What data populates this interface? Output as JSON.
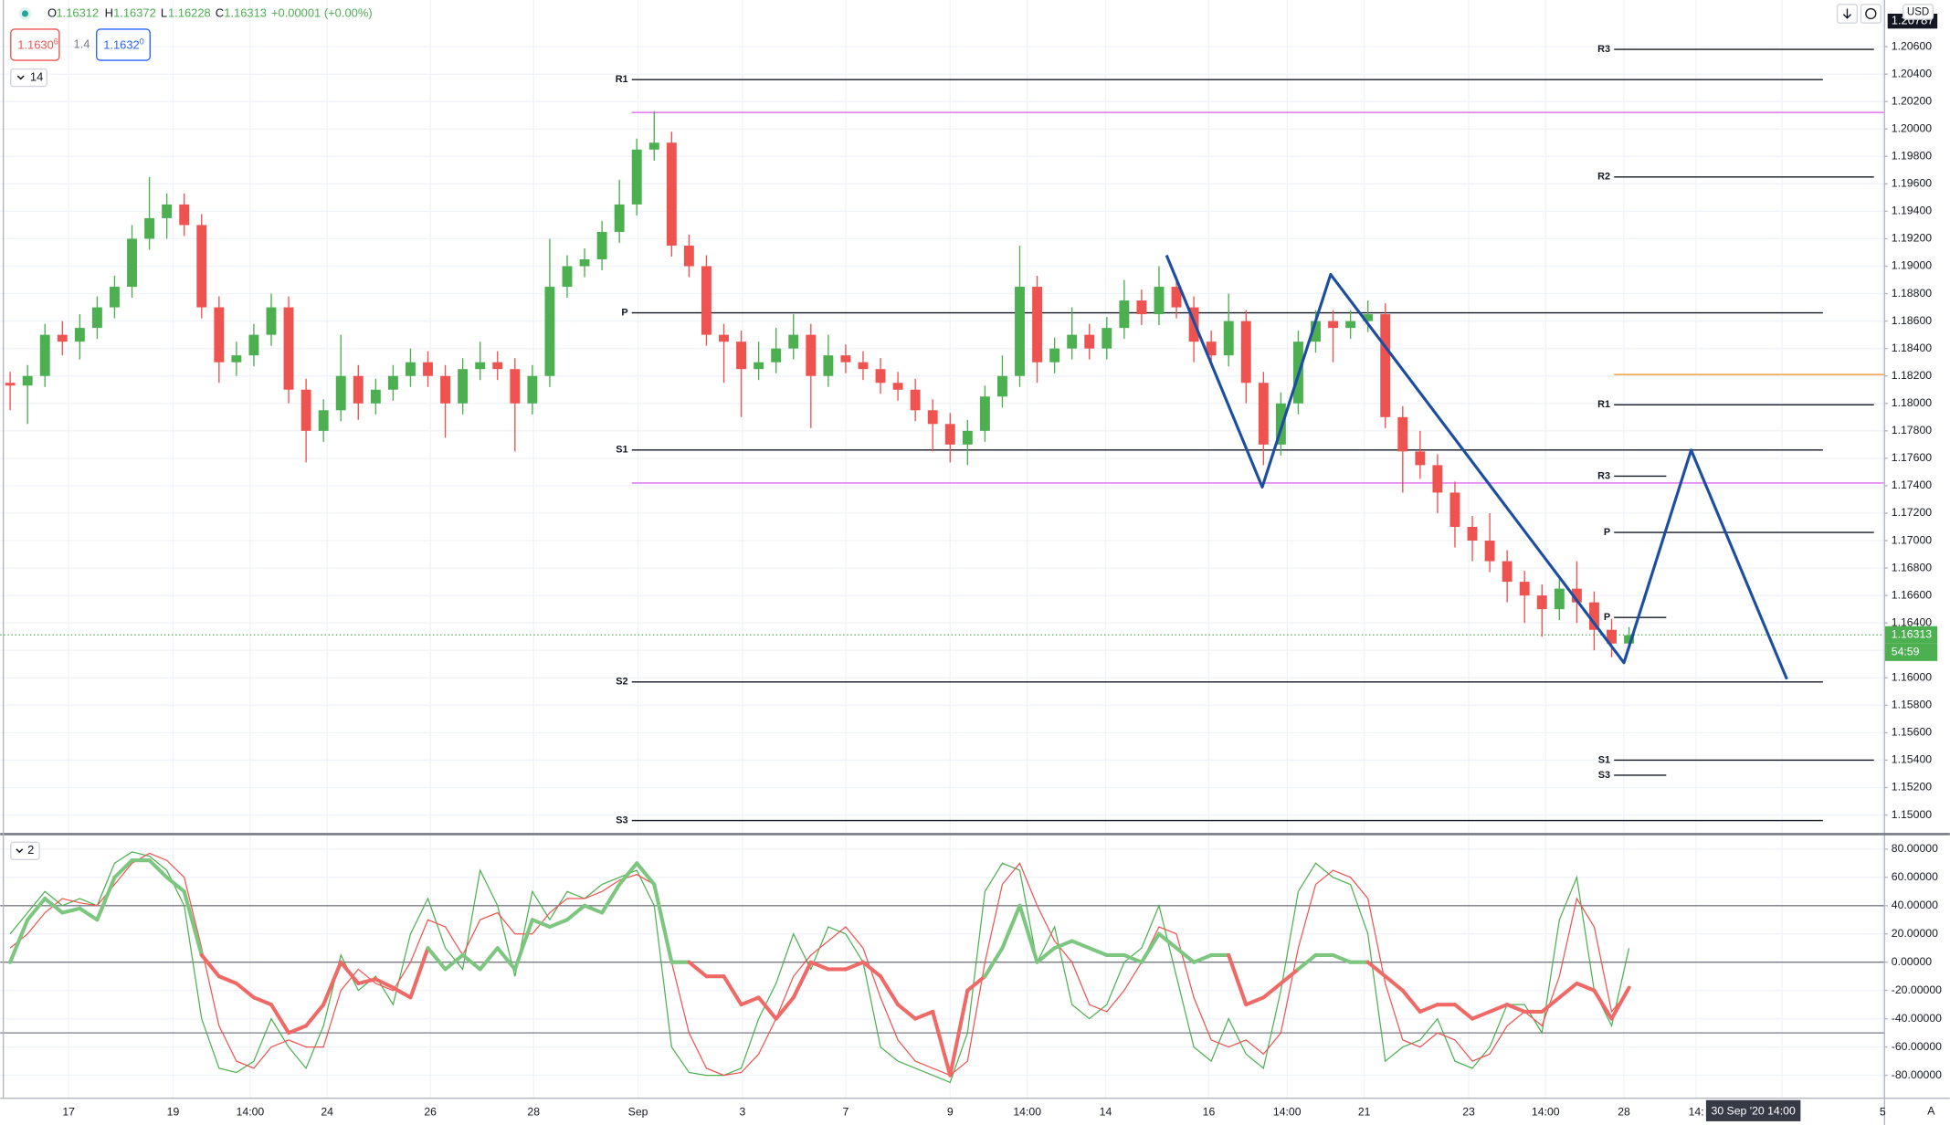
{
  "chart_data": {
    "type": "candlestick",
    "up_color": "#4caf50",
    "down_color": "#ef5350",
    "grid": true,
    "candles": [
      [
        1.1815,
        1.1823,
        1.1795,
        1.1813
      ],
      [
        1.1813,
        1.1828,
        1.1785,
        1.182
      ],
      [
        1.182,
        1.1858,
        1.1812,
        1.185
      ],
      [
        1.185,
        1.186,
        1.1835,
        1.1845
      ],
      [
        1.1845,
        1.1865,
        1.1832,
        1.1855
      ],
      [
        1.1855,
        1.1878,
        1.1847,
        1.187
      ],
      [
        1.187,
        1.1893,
        1.1862,
        1.1885
      ],
      [
        1.1885,
        1.193,
        1.1877,
        1.192
      ],
      [
        1.192,
        1.1965,
        1.1912,
        1.1935
      ],
      [
        1.1935,
        1.1953,
        1.192,
        1.1945
      ],
      [
        1.1945,
        1.1953,
        1.1922,
        1.193
      ],
      [
        1.193,
        1.1938,
        1.1862,
        1.187
      ],
      [
        1.187,
        1.1878,
        1.1815,
        1.183
      ],
      [
        1.183,
        1.1845,
        1.182,
        1.1835
      ],
      [
        1.1835,
        1.1858,
        1.1827,
        1.185
      ],
      [
        1.185,
        1.188,
        1.1842,
        1.187
      ],
      [
        1.187,
        1.1878,
        1.18,
        1.181
      ],
      [
        1.181,
        1.1818,
        1.1757,
        1.178
      ],
      [
        1.178,
        1.1803,
        1.1772,
        1.1795
      ],
      [
        1.1795,
        1.185,
        1.1787,
        1.182
      ],
      [
        1.182,
        1.1828,
        1.1788,
        1.18
      ],
      [
        1.18,
        1.1818,
        1.1792,
        1.181
      ],
      [
        1.181,
        1.1828,
        1.1802,
        1.182
      ],
      [
        1.182,
        1.184,
        1.1812,
        1.183
      ],
      [
        1.183,
        1.1838,
        1.1812,
        1.182
      ],
      [
        1.182,
        1.1828,
        1.1775,
        1.18
      ],
      [
        1.18,
        1.1833,
        1.1792,
        1.1825
      ],
      [
        1.1825,
        1.1845,
        1.1817,
        1.183
      ],
      [
        1.183,
        1.1838,
        1.1817,
        1.1825
      ],
      [
        1.1825,
        1.1833,
        1.1765,
        1.18
      ],
      [
        1.18,
        1.1828,
        1.1792,
        1.182
      ],
      [
        1.182,
        1.192,
        1.1812,
        1.1885
      ],
      [
        1.1885,
        1.1908,
        1.1877,
        1.19
      ],
      [
        1.19,
        1.1913,
        1.1892,
        1.1905
      ],
      [
        1.1905,
        1.1933,
        1.1897,
        1.1925
      ],
      [
        1.1925,
        1.1963,
        1.1917,
        1.1945
      ],
      [
        1.1945,
        1.1993,
        1.1937,
        1.1985
      ],
      [
        1.1985,
        1.2013,
        1.1977,
        1.199
      ],
      [
        1.199,
        1.1998,
        1.1907,
        1.1915
      ],
      [
        1.1915,
        1.1923,
        1.1892,
        1.19
      ],
      [
        1.19,
        1.1908,
        1.1842,
        1.185
      ],
      [
        1.185,
        1.1858,
        1.1815,
        1.1845
      ],
      [
        1.1845,
        1.1853,
        1.179,
        1.1825
      ],
      [
        1.1825,
        1.1845,
        1.1817,
        1.183
      ],
      [
        1.183,
        1.1855,
        1.1822,
        1.184
      ],
      [
        1.184,
        1.1865,
        1.1832,
        1.185
      ],
      [
        1.185,
        1.1858,
        1.1782,
        1.182
      ],
      [
        1.182,
        1.185,
        1.1812,
        1.1835
      ],
      [
        1.1835,
        1.1843,
        1.1822,
        1.183
      ],
      [
        1.183,
        1.1838,
        1.1817,
        1.1825
      ],
      [
        1.1825,
        1.1833,
        1.1807,
        1.1815
      ],
      [
        1.1815,
        1.1823,
        1.1802,
        1.181
      ],
      [
        1.181,
        1.1818,
        1.1787,
        1.1795
      ],
      [
        1.1795,
        1.1803,
        1.1765,
        1.1785
      ],
      [
        1.1785,
        1.1793,
        1.1757,
        1.177
      ],
      [
        1.177,
        1.1788,
        1.1755,
        1.178
      ],
      [
        1.178,
        1.1813,
        1.1772,
        1.1805
      ],
      [
        1.1805,
        1.1835,
        1.1797,
        1.182
      ],
      [
        1.182,
        1.1915,
        1.1812,
        1.1885
      ],
      [
        1.1885,
        1.1893,
        1.1815,
        1.183
      ],
      [
        1.183,
        1.1848,
        1.1822,
        1.184
      ],
      [
        1.184,
        1.187,
        1.1832,
        1.185
      ],
      [
        1.185,
        1.1858,
        1.1832,
        1.184
      ],
      [
        1.184,
        1.1863,
        1.1832,
        1.1855
      ],
      [
        1.1855,
        1.189,
        1.1847,
        1.1875
      ],
      [
        1.1875,
        1.1883,
        1.1857,
        1.1865
      ],
      [
        1.1865,
        1.19,
        1.1857,
        1.1885
      ],
      [
        1.1885,
        1.1893,
        1.1862,
        1.187
      ],
      [
        1.187,
        1.1878,
        1.183,
        1.1845
      ],
      [
        1.1845,
        1.1853,
        1.1827,
        1.1835
      ],
      [
        1.1835,
        1.188,
        1.1827,
        1.186
      ],
      [
        1.186,
        1.1868,
        1.18,
        1.1815
      ],
      [
        1.1815,
        1.1823,
        1.1755,
        1.177
      ],
      [
        1.177,
        1.1808,
        1.1762,
        1.18
      ],
      [
        1.18,
        1.1853,
        1.1792,
        1.1845
      ],
      [
        1.1845,
        1.1868,
        1.1837,
        1.186
      ],
      [
        1.186,
        1.1868,
        1.183,
        1.1855
      ],
      [
        1.1855,
        1.1868,
        1.1847,
        1.186
      ],
      [
        1.186,
        1.1875,
        1.1852,
        1.1865
      ],
      [
        1.1865,
        1.1873,
        1.1782,
        1.179
      ],
      [
        1.179,
        1.1798,
        1.1735,
        1.1765
      ],
      [
        1.1765,
        1.178,
        1.1745,
        1.1755
      ],
      [
        1.1755,
        1.1763,
        1.172,
        1.1735
      ],
      [
        1.1735,
        1.1743,
        1.1695,
        1.171
      ],
      [
        1.171,
        1.1718,
        1.1685,
        1.17
      ],
      [
        1.17,
        1.172,
        1.1677,
        1.1685
      ],
      [
        1.1685,
        1.1693,
        1.1655,
        1.167
      ],
      [
        1.167,
        1.1678,
        1.164,
        1.166
      ],
      [
        1.166,
        1.1668,
        1.163,
        1.165
      ],
      [
        1.165,
        1.1673,
        1.1642,
        1.1665
      ],
      [
        1.1665,
        1.1685,
        1.164,
        1.1655
      ],
      [
        1.1655,
        1.1663,
        1.162,
        1.1635
      ],
      [
        1.1635,
        1.1643,
        1.1615,
        1.1625
      ],
      [
        1.1625,
        1.1637,
        1.1623,
        1.1631
      ]
    ],
    "xlim": [
      -0.5714,
      107.6429
    ],
    "xticks": [
      {
        "value": 3.36,
        "label": "17"
      },
      {
        "value": 9.36,
        "label": "19"
      },
      {
        "value": 13.79,
        "label": "14:00"
      },
      {
        "value": 18.21,
        "label": "24"
      },
      {
        "value": 24.14,
        "label": "26"
      },
      {
        "value": 30.07,
        "label": "28"
      },
      {
        "value": 36.07,
        "label": "Sep"
      },
      {
        "value": 42.07,
        "label": "3"
      },
      {
        "value": 48,
        "label": "7"
      },
      {
        "value": 54,
        "label": "9"
      },
      {
        "value": 58.43,
        "label": "14:00"
      },
      {
        "value": 62.93,
        "label": "14"
      },
      {
        "value": 68.86,
        "label": "16"
      },
      {
        "value": 73.36,
        "label": "14:00"
      },
      {
        "value": 77.79,
        "label": "21"
      },
      {
        "value": 83.79,
        "label": "23"
      },
      {
        "value": 88.21,
        "label": "14:00"
      },
      {
        "value": 92.71,
        "label": "28"
      },
      {
        "value": 96.86,
        "label": "14:"
      },
      {
        "value": 101.79,
        "label": "14:00"
      },
      {
        "value": 107.57,
        "label": "5"
      }
    ],
    "ylim": [
      1.1487,
      1.2094
    ],
    "yticks": [
      {
        "value": 1.15,
        "label": "1.15000"
      },
      {
        "value": 1.152,
        "label": "1.15200"
      },
      {
        "value": 1.154,
        "label": "1.15400"
      },
      {
        "value": 1.156,
        "label": "1.15600"
      },
      {
        "value": 1.158,
        "label": "1.15800"
      },
      {
        "value": 1.16,
        "label": "1.16000"
      },
      {
        "value": 1.162,
        "label": "1.16200"
      },
      {
        "value": 1.164,
        "label": "1.16400"
      },
      {
        "value": 1.166,
        "label": "1.16600"
      },
      {
        "value": 1.168,
        "label": "1.16800"
      },
      {
        "value": 1.17,
        "label": "1.17000"
      },
      {
        "value": 1.172,
        "label": "1.17200"
      },
      {
        "value": 1.174,
        "label": "1.17400"
      },
      {
        "value": 1.176,
        "label": "1.17600"
      },
      {
        "value": 1.178,
        "label": "1.17800"
      },
      {
        "value": 1.18,
        "label": "1.18000"
      },
      {
        "value": 1.182,
        "label": "1.18200"
      },
      {
        "value": 1.184,
        "label": "1.18400"
      },
      {
        "value": 1.186,
        "label": "1.18600"
      },
      {
        "value": 1.188,
        "label": "1.18800"
      },
      {
        "value": 1.19,
        "label": "1.19000"
      },
      {
        "value": 1.192,
        "label": "1.19200"
      },
      {
        "value": 1.194,
        "label": "1.19400"
      },
      {
        "value": 1.196,
        "label": "1.19600"
      },
      {
        "value": 1.198,
        "label": "1.19800"
      },
      {
        "value": 1.2,
        "label": "1.20000"
      },
      {
        "value": 1.202,
        "label": "1.20200"
      },
      {
        "value": 1.204,
        "label": "1.20400"
      },
      {
        "value": 1.206,
        "label": "1.20600"
      }
    ],
    "level_color": "#131722",
    "levels": [
      {
        "label": "R1",
        "value": 1.2036,
        "from": 35.71,
        "to": 104.14
      },
      {
        "label": "P",
        "value": 1.1866,
        "from": 35.71,
        "to": 104.14
      },
      {
        "label": "S1",
        "value": 1.1766,
        "from": 35.71,
        "to": 104.14
      },
      {
        "label": "S2",
        "value": 1.1597,
        "from": 35.71,
        "to": 104.14
      },
      {
        "label": "S3",
        "value": 1.1496,
        "from": 35.71,
        "to": 104.14
      },
      {
        "label": "R3",
        "value": 1.2058,
        "from": 92.14,
        "to": 107.07
      },
      {
        "label": "R2",
        "value": 1.1965,
        "from": 92.14,
        "to": 107.07
      },
      {
        "label": "R1",
        "value": 1.1799,
        "from": 92.14,
        "to": 107.07
      },
      {
        "label": "P",
        "value": 1.1706,
        "from": 92.14,
        "to": 107.07
      },
      {
        "label": "S1",
        "value": 1.154,
        "from": 92.14,
        "to": 107.07
      },
      {
        "label": "R3",
        "value": 1.1747,
        "from": 92.14,
        "to": 95.14
      },
      {
        "label": "P",
        "value": 1.1644,
        "from": 92.14,
        "to": 95.14
      },
      {
        "label": "S3",
        "value": 1.1529,
        "from": 92.14,
        "to": 95.14
      }
    ],
    "lines": [
      {
        "value": 1.2012,
        "from": 35.71,
        "to": 107.64,
        "color": "#e57ff0"
      },
      {
        "value": 1.1742,
        "from": 35.71,
        "to": 107.64,
        "color": "#e57ff0"
      },
      {
        "value": 1.1821,
        "from": 92.14,
        "to": 107.64,
        "color": "#f5a34d"
      }
    ],
    "pattern": {
      "color": "#1c4da1",
      "x": [
        66.43,
        71.93,
        75.86,
        92.71,
        96.57,
        102.07
      ],
      "y": [
        1.1908,
        1.1739,
        1.1894,
        1.1611,
        1.1766,
        1.1599
      ]
    },
    "current_price": {
      "value": 1.16313,
      "countdown": "54:59",
      "color": "#4caf50"
    },
    "crosshair": {
      "x": 100.14,
      "label": "30 Sep '20  14:00"
    },
    "oscillator": {
      "ylim": [
        -95.8,
        89.7
      ],
      "yticks": [
        {
          "value": 80,
          "label": "80.00000"
        },
        {
          "value": 60,
          "label": "60.00000"
        },
        {
          "value": 40,
          "label": "40.00000"
        },
        {
          "value": 20,
          "label": "20.00000"
        },
        {
          "value": 0,
          "label": "0.00000"
        },
        {
          "value": -20,
          "label": "-20.00000"
        },
        {
          "value": -40,
          "label": "-40.00000"
        },
        {
          "value": -60,
          "label": "-60.00000"
        },
        {
          "value": -80,
          "label": "-80.00000"
        }
      ],
      "levels": [
        40,
        0,
        -50
      ],
      "level_color": "#787b86",
      "thick": {
        "up_color": "#7cc67f",
        "down_color": "#ef6a66",
        "values": [
          0,
          30,
          45,
          35,
          38,
          30,
          60,
          72,
          72,
          60,
          50,
          5,
          -10,
          -15,
          -25,
          -30,
          -50,
          -45,
          -30,
          0,
          -15,
          -12,
          -18,
          -25,
          10,
          -5,
          5,
          -5,
          10,
          -5,
          30,
          25,
          30,
          40,
          35,
          55,
          70,
          55,
          0,
          0,
          -10,
          -10,
          -30,
          -25,
          -40,
          -25,
          0,
          -5,
          -5,
          0,
          -10,
          -30,
          -40,
          -35,
          -80,
          -20,
          -10,
          10,
          40,
          0,
          10,
          15,
          10,
          5,
          5,
          0,
          20,
          10,
          0,
          5,
          5,
          -30,
          -25,
          -15,
          -5,
          5,
          5,
          0,
          0,
          -10,
          -20,
          -35,
          -30,
          -30,
          -40,
          -35,
          -30,
          -35,
          -35,
          -25,
          -15,
          -20,
          -40,
          -18
        ]
      },
      "series": [
        {
          "color": "#4caf50",
          "values": [
            20,
            35,
            50,
            40,
            45,
            40,
            70,
            78,
            75,
            65,
            40,
            -40,
            -75,
            -78,
            -70,
            -40,
            -60,
            -75,
            -45,
            5,
            -20,
            -10,
            -30,
            20,
            45,
            10,
            -5,
            65,
            40,
            -10,
            50,
            30,
            50,
            45,
            55,
            60,
            65,
            40,
            -60,
            -78,
            -80,
            -80,
            -75,
            -40,
            -15,
            20,
            -5,
            25,
            20,
            0,
            -60,
            -70,
            -75,
            -80,
            -85,
            -50,
            50,
            70,
            65,
            0,
            25,
            -30,
            -40,
            -30,
            0,
            10,
            40,
            -10,
            -60,
            -70,
            -40,
            -65,
            -75,
            -20,
            50,
            70,
            60,
            55,
            20,
            -70,
            -60,
            -55,
            -40,
            -70,
            -75,
            -60,
            -30,
            -30,
            -50,
            30,
            60,
            -20,
            -45,
            10
          ]
        },
        {
          "color": "#ef5350",
          "values": [
            10,
            20,
            35,
            45,
            42,
            40,
            55,
            70,
            77,
            72,
            60,
            10,
            -45,
            -70,
            -75,
            -60,
            -55,
            -60,
            -60,
            -20,
            -5,
            -15,
            -20,
            0,
            30,
            25,
            5,
            30,
            35,
            20,
            20,
            35,
            45,
            45,
            50,
            58,
            62,
            55,
            0,
            -50,
            -75,
            -80,
            -78,
            -65,
            -40,
            -10,
            5,
            15,
            25,
            10,
            -25,
            -55,
            -70,
            -75,
            -80,
            -70,
            0,
            55,
            70,
            40,
            15,
            0,
            -30,
            -35,
            -20,
            0,
            25,
            20,
            -25,
            -55,
            -60,
            -55,
            -65,
            -50,
            10,
            55,
            65,
            60,
            45,
            -15,
            -55,
            -60,
            -50,
            -55,
            -70,
            -65,
            -45,
            -35,
            -45,
            -10,
            45,
            25,
            -35,
            -20
          ]
        }
      ]
    }
  },
  "ui": {
    "ohlc": [
      {
        "label": "O",
        "value": "1.16312"
      },
      {
        "label": "H",
        "value": "1.16372"
      },
      {
        "label": "L",
        "value": "1.16228"
      },
      {
        "label": "C",
        "value": "1.16313"
      }
    ],
    "change": "+0.00001 (+0.00%)",
    "sell": {
      "price": "1.1630",
      "pip": "6"
    },
    "spread": "1.4",
    "buy": {
      "price": "1.1632",
      "pip": "0"
    },
    "main_pane_label": "14",
    "osc_pane_label": "2",
    "currency": "USD",
    "top_price": "1.20787",
    "auto": "A"
  }
}
